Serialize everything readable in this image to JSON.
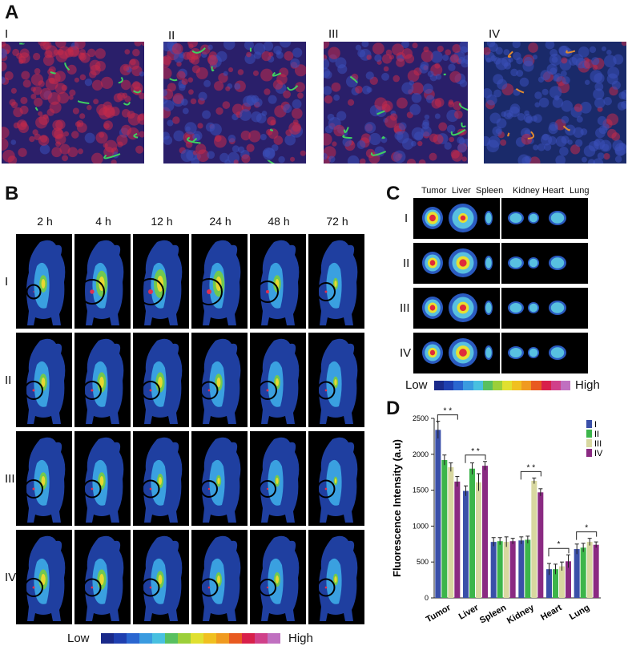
{
  "panels": {
    "A": {
      "label": "A",
      "groups": [
        "I",
        "II",
        "III",
        "IV"
      ]
    },
    "B": {
      "label": "B",
      "times": [
        "2 h",
        "4 h",
        "12 h",
        "24 h",
        "48 h",
        "72 h"
      ],
      "groups": [
        "I",
        "II",
        "III",
        "IV"
      ],
      "scale_low": "Low",
      "scale_high": "High"
    },
    "C": {
      "label": "C",
      "organs": [
        "Tumor",
        "Liver",
        "Spleen",
        "Kidney",
        "Heart",
        "Lung"
      ],
      "groups": [
        "I",
        "II",
        "III",
        "IV"
      ],
      "scale_low": "Low",
      "scale_high": "High"
    },
    "D": {
      "label": "D"
    }
  },
  "colors": {
    "scale": [
      "#1a2a8a",
      "#1f3fb0",
      "#2a66d0",
      "#3a9be0",
      "#48c0e0",
      "#58c060",
      "#9ccf3a",
      "#e0e030",
      "#f0c020",
      "#f09a20",
      "#e85a20",
      "#d8204a",
      "#d0408a",
      "#c070c0"
    ],
    "series": [
      "#3a4fa8",
      "#3cb54a",
      "#d8d8a0",
      "#8a2a82"
    ]
  },
  "chart_data": {
    "type": "bar",
    "ylabel": "Fluorescence Intensity (a.u)",
    "xlabel": "",
    "ylim": [
      0,
      2500
    ],
    "yticks": [
      0,
      500,
      1000,
      1500,
      2000,
      2500
    ],
    "categories": [
      "Tumor",
      "Liver",
      "Spleen",
      "Kidney",
      "Heart",
      "Lung"
    ],
    "series": [
      {
        "name": "I",
        "values": [
          2340,
          1490,
          780,
          800,
          400,
          680
        ],
        "errors": [
          120,
          70,
          60,
          50,
          80,
          70
        ]
      },
      {
        "name": "II",
        "values": [
          1920,
          1800,
          790,
          810,
          400,
          700
        ],
        "errors": [
          70,
          80,
          50,
          50,
          70,
          60
        ]
      },
      {
        "name": "III",
        "values": [
          1820,
          1610,
          780,
          1630,
          440,
          780
        ],
        "errors": [
          60,
          120,
          70,
          40,
          60,
          50
        ]
      },
      {
        "name": "IV",
        "values": [
          1620,
          1840,
          790,
          1470,
          510,
          740
        ],
        "errors": [
          70,
          60,
          40,
          50,
          90,
          40
        ]
      }
    ],
    "significance": [
      {
        "category": "Tumor",
        "text": "* *"
      },
      {
        "category": "Liver",
        "text": "* *"
      },
      {
        "category": "Kidney",
        "text": "* *"
      },
      {
        "category": "Heart",
        "text": "*"
      },
      {
        "category": "Lung",
        "text": "*"
      }
    ],
    "legend_position": "top-right"
  }
}
